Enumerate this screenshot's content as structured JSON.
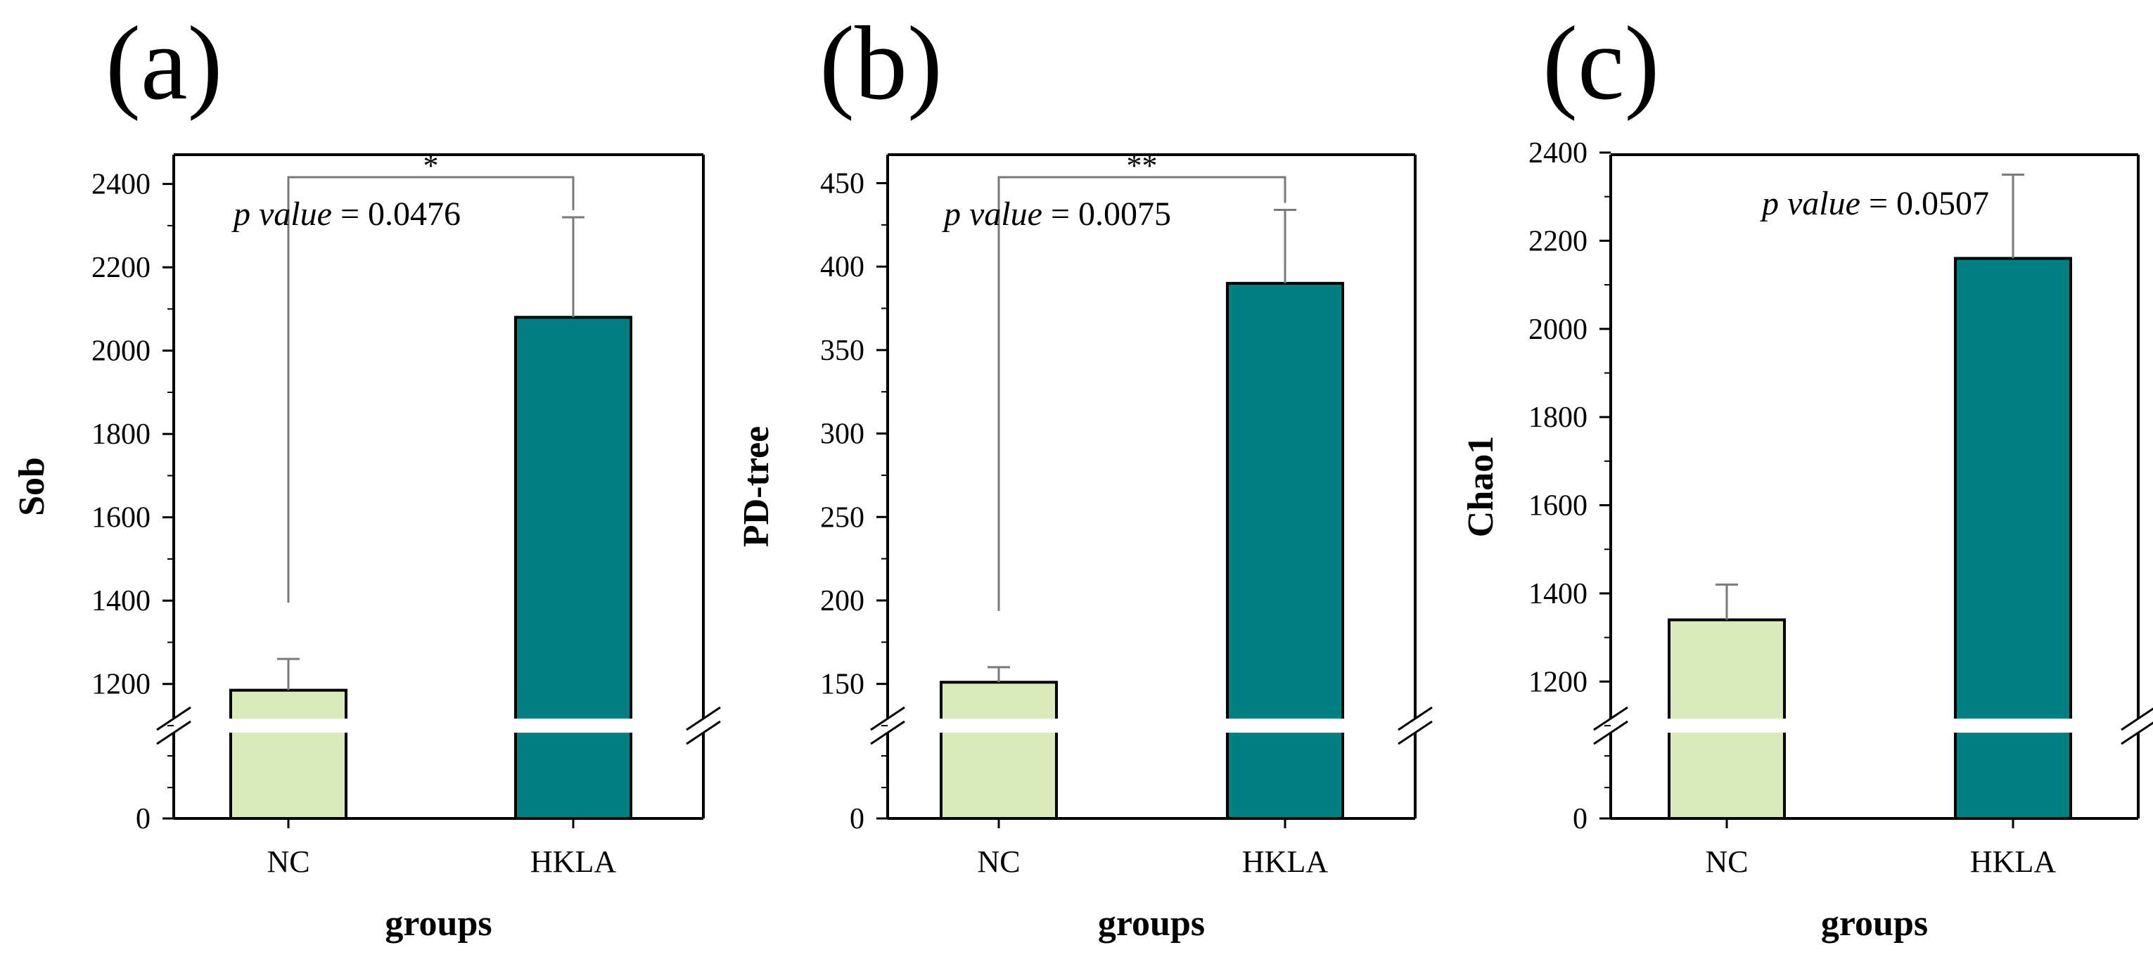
{
  "figure": {
    "panels": [
      {
        "letter": "(a)",
        "ylabel": "Sob",
        "xlabel": "groups",
        "p_label": "p value",
        "p_text": " = 0.0476",
        "significance": "*",
        "significance_bracket": true
      },
      {
        "letter": "(b)",
        "ylabel": "PD-tree",
        "xlabel": "groups",
        "p_label": "p value",
        "p_text": " = 0.0075",
        "significance": "**",
        "significance_bracket": true
      },
      {
        "letter": "(c)",
        "ylabel": "Chao1",
        "xlabel": "groups",
        "p_label": "p value",
        "p_text": " = 0.0507",
        "significance": "",
        "significance_bracket": false
      }
    ]
  },
  "colors": {
    "nc_bar": "#d9eabb",
    "hkla_bar": "#007f80",
    "axis": "#000000",
    "error": "#7a7a7a"
  },
  "chart_data": [
    {
      "type": "bar",
      "title": "",
      "categories": [
        "NC",
        "HKLA"
      ],
      "values": [
        1185,
        2080
      ],
      "errors": [
        75,
        240
      ],
      "xlabel": "groups",
      "ylabel": "Sob",
      "axis_break": [
        0,
        1100
      ],
      "ylim": [
        1100,
        2450
      ],
      "yticks": [
        0,
        1200,
        1400,
        1600,
        1800,
        2000,
        2200,
        2400
      ],
      "p_value": "0.0476",
      "significance": "*"
    },
    {
      "type": "bar",
      "title": "",
      "categories": [
        "NC",
        "HKLA"
      ],
      "values": [
        151,
        390
      ],
      "errors": [
        9,
        44
      ],
      "xlabel": "groups",
      "ylabel": "PD-tree",
      "axis_break": [
        0,
        125
      ],
      "ylim": [
        125,
        462
      ],
      "yticks": [
        0,
        150,
        200,
        250,
        300,
        350,
        400,
        450
      ],
      "p_value": "0.0075",
      "significance": "**"
    },
    {
      "type": "bar",
      "title": "",
      "categories": [
        "NC",
        "HKLA"
      ],
      "values": [
        1340,
        2160
      ],
      "errors": [
        80,
        190
      ],
      "xlabel": "groups",
      "ylabel": "Chao1",
      "axis_break": [
        0,
        1100
      ],
      "ylim": [
        1100,
        2400
      ],
      "yticks": [
        0,
        1200,
        1400,
        1600,
        1800,
        2000,
        2200,
        2400
      ],
      "p_value": "0.0507",
      "significance": ""
    }
  ]
}
